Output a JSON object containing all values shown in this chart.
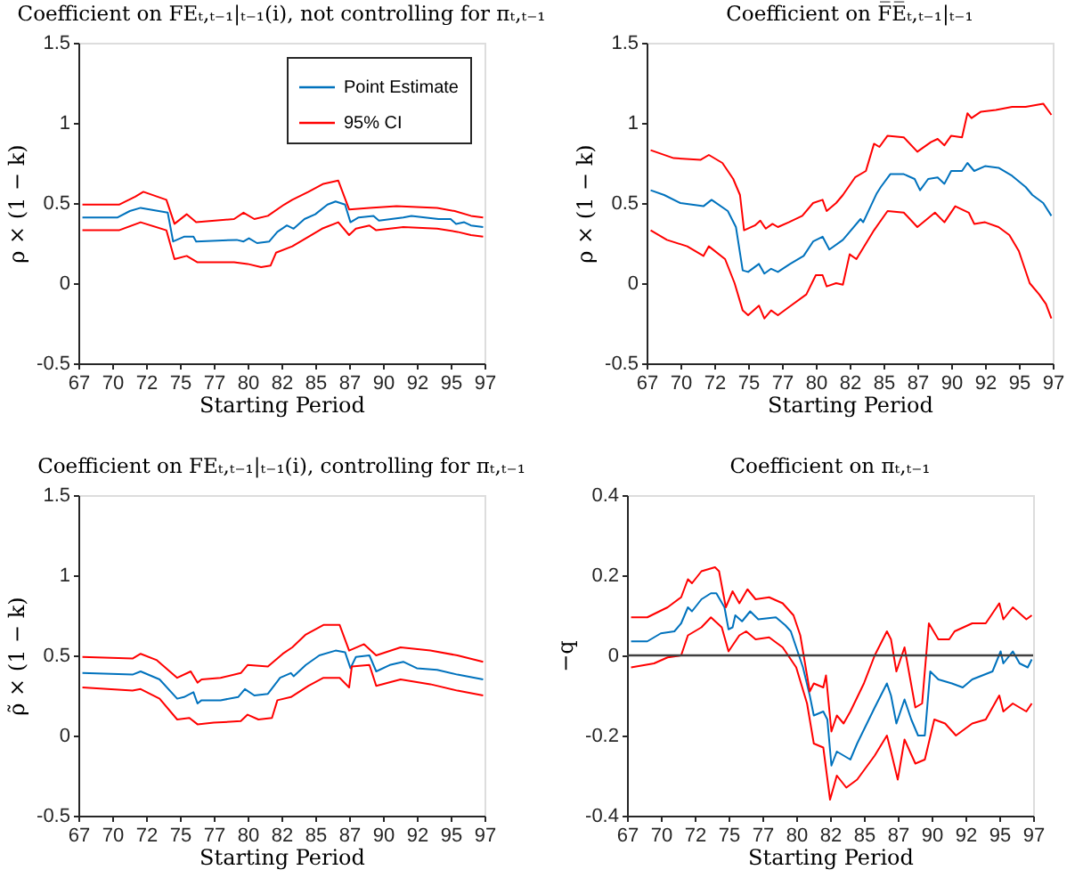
{
  "chart_data": [
    {
      "type": "line",
      "title": "Coefficient on FEₜ,ₜ₋₁|ₜ₋₁(i), not controlling for πₜ,ₜ₋₁",
      "xlabel": "Starting Period",
      "ylabel": "ρ × (1 − k)",
      "xlim": [
        67,
        97
      ],
      "xticks": [
        {
          "value": 67,
          "label": "67"
        },
        {
          "value": 69.5,
          "label": "70"
        },
        {
          "value": 72,
          "label": "72"
        },
        {
          "value": 74.5,
          "label": "75"
        },
        {
          "value": 77,
          "label": "77"
        },
        {
          "value": 79.5,
          "label": "80"
        },
        {
          "value": 82,
          "label": "82"
        },
        {
          "value": 84.5,
          "label": "85"
        },
        {
          "value": 87,
          "label": "87"
        },
        {
          "value": 89.5,
          "label": "90"
        },
        {
          "value": 92,
          "label": "92"
        },
        {
          "value": 94.5,
          "label": "95"
        },
        {
          "value": 97,
          "label": "97"
        }
      ],
      "ylim": [
        -0.5,
        1.5
      ],
      "yticks": [
        -0.5,
        0,
        0.5,
        1,
        1.5
      ],
      "grid": false,
      "legend": "top right",
      "series": [
        {
          "name": "Point Estimate",
          "color": "#0072bd",
          "x": [
            67.3,
            69.9,
            70.8,
            71.6,
            73.6,
            74.0,
            74.8,
            75.5,
            75.7,
            78.7,
            79.2,
            79.6,
            80.2,
            81.1,
            81.7,
            82.4,
            82.9,
            83.7,
            84.5,
            85.4,
            86.0,
            86.7,
            87.1,
            87.7,
            88.8,
            89.2,
            91.0,
            91.6,
            93.6,
            94.5,
            94.9,
            95.5,
            96.0,
            96.9
          ],
          "values": [
            0.41,
            0.41,
            0.45,
            0.47,
            0.44,
            0.26,
            0.29,
            0.29,
            0.26,
            0.27,
            0.26,
            0.28,
            0.25,
            0.26,
            0.32,
            0.36,
            0.34,
            0.4,
            0.43,
            0.49,
            0.51,
            0.49,
            0.38,
            0.41,
            0.42,
            0.39,
            0.41,
            0.42,
            0.4,
            0.4,
            0.37,
            0.38,
            0.36,
            0.35
          ]
        },
        {
          "name": "95% CI",
          "color": "#ff0000",
          "x": [
            67.3,
            70.0,
            71.2,
            71.8,
            73.5,
            74.1,
            75.0,
            75.7,
            78.5,
            79.2,
            80.0,
            81.0,
            82.2,
            82.8,
            84.0,
            85.1,
            86.2,
            87.0,
            88.5,
            90.5,
            93.5,
            94.8,
            96.0,
            96.9
          ],
          "values": [
            0.49,
            0.49,
            0.54,
            0.57,
            0.52,
            0.37,
            0.43,
            0.38,
            0.4,
            0.44,
            0.4,
            0.42,
            0.49,
            0.52,
            0.57,
            0.62,
            0.64,
            0.46,
            0.47,
            0.48,
            0.47,
            0.45,
            0.42,
            0.41
          ]
        },
        {
          "color": "#ff0000",
          "x": [
            67.3,
            70.0,
            71.6,
            73.5,
            74.1,
            75.0,
            75.8,
            78.5,
            79.5,
            80.5,
            81.2,
            81.6,
            82.8,
            84.0,
            85.0,
            86.2,
            87.0,
            87.5,
            88.5,
            89.0,
            91.0,
            93.5,
            95.0,
            96.0,
            96.9
          ],
          "values": [
            0.33,
            0.33,
            0.38,
            0.33,
            0.15,
            0.17,
            0.13,
            0.13,
            0.12,
            0.1,
            0.11,
            0.19,
            0.23,
            0.29,
            0.34,
            0.38,
            0.3,
            0.34,
            0.36,
            0.33,
            0.35,
            0.34,
            0.32,
            0.3,
            0.29
          ]
        }
      ]
    },
    {
      "type": "line",
      "title": "Coefficient on F̅E̅ₜ,ₜ₋₁|ₜ₋₁",
      "xlabel": "Starting Period",
      "ylabel": "ρ × (1 − k)",
      "xlim": [
        67,
        97
      ],
      "xticks": [
        {
          "value": 67,
          "label": "67"
        },
        {
          "value": 69.5,
          "label": "70"
        },
        {
          "value": 72,
          "label": "72"
        },
        {
          "value": 74.5,
          "label": "75"
        },
        {
          "value": 77,
          "label": "77"
        },
        {
          "value": 79.5,
          "label": "80"
        },
        {
          "value": 82,
          "label": "82"
        },
        {
          "value": 84.5,
          "label": "85"
        },
        {
          "value": 87,
          "label": "87"
        },
        {
          "value": 89.5,
          "label": "90"
        },
        {
          "value": 92,
          "label": "92"
        },
        {
          "value": 94.5,
          "label": "95"
        },
        {
          "value": 97,
          "label": "97"
        }
      ],
      "ylim": [
        -0.5,
        1.5
      ],
      "yticks": [
        -0.5,
        0,
        0.5,
        1,
        1.5
      ],
      "grid": false,
      "series": [
        {
          "color": "#0072bd",
          "x": [
            67.3,
            68.3,
            69.5,
            71.2,
            71.8,
            73.0,
            73.6,
            74.1,
            74.5,
            75.3,
            75.7,
            76.2,
            76.7,
            77.6,
            78.6,
            79.3,
            80.0,
            80.5,
            81.5,
            82.8,
            83.0,
            84.0,
            84.3,
            85.0,
            86.0,
            86.8,
            87.2,
            87.8,
            88.5,
            89.0,
            89.5,
            90.3,
            90.7,
            91.2,
            92.0,
            93.0,
            94.0,
            95.0,
            95.5,
            96.3,
            96.9
          ],
          "values": [
            0.58,
            0.55,
            0.5,
            0.48,
            0.52,
            0.45,
            0.35,
            0.08,
            0.07,
            0.12,
            0.06,
            0.09,
            0.07,
            0.12,
            0.17,
            0.26,
            0.29,
            0.21,
            0.27,
            0.4,
            0.38,
            0.56,
            0.6,
            0.68,
            0.68,
            0.65,
            0.58,
            0.65,
            0.66,
            0.62,
            0.7,
            0.7,
            0.75,
            0.7,
            0.73,
            0.72,
            0.67,
            0.6,
            0.55,
            0.5,
            0.42
          ]
        },
        {
          "color": "#ff0000",
          "x": [
            67.3,
            69.0,
            71.0,
            71.6,
            72.6,
            73.4,
            73.9,
            74.2,
            75.0,
            75.4,
            75.8,
            76.3,
            76.7,
            77.5,
            78.5,
            79.3,
            80.0,
            80.3,
            81.0,
            81.5,
            82.4,
            83.2,
            83.8,
            84.2,
            84.8,
            86.0,
            87.0,
            88.0,
            88.5,
            89.0,
            89.5,
            90.3,
            90.7,
            91.0,
            91.7,
            92.8,
            94.0,
            95.0,
            96.3,
            96.9
          ],
          "values": [
            0.83,
            0.78,
            0.77,
            0.8,
            0.75,
            0.65,
            0.55,
            0.33,
            0.36,
            0.39,
            0.34,
            0.37,
            0.35,
            0.38,
            0.42,
            0.5,
            0.52,
            0.45,
            0.5,
            0.55,
            0.66,
            0.7,
            0.87,
            0.85,
            0.92,
            0.91,
            0.82,
            0.88,
            0.9,
            0.86,
            0.92,
            0.91,
            1.06,
            1.03,
            1.07,
            1.08,
            1.1,
            1.1,
            1.12,
            1.05
          ]
        },
        {
          "color": "#ff0000",
          "x": [
            67.3,
            68.5,
            70.0,
            71.2,
            71.6,
            72.8,
            73.5,
            74.1,
            74.5,
            75.3,
            75.7,
            76.2,
            76.7,
            77.5,
            78.8,
            79.5,
            80.0,
            80.3,
            81.0,
            81.5,
            82.0,
            82.5,
            83.8,
            84.8,
            86.0,
            87.0,
            88.3,
            89.0,
            89.8,
            90.8,
            91.2,
            92.0,
            93.0,
            93.8,
            94.5,
            95.3,
            96.0,
            96.5,
            96.9
          ],
          "values": [
            0.33,
            0.27,
            0.23,
            0.17,
            0.23,
            0.15,
            0.0,
            -0.17,
            -0.2,
            -0.14,
            -0.22,
            -0.17,
            -0.2,
            -0.15,
            -0.07,
            0.05,
            0.05,
            -0.02,
            0.0,
            -0.01,
            0.18,
            0.15,
            0.33,
            0.45,
            0.44,
            0.35,
            0.44,
            0.38,
            0.48,
            0.44,
            0.37,
            0.38,
            0.35,
            0.3,
            0.2,
            0.0,
            -0.07,
            -0.13,
            -0.22
          ]
        }
      ]
    },
    {
      "type": "line",
      "title": "Coefficient on FEₜ,ₜ₋₁|ₜ₋₁(i), controlling for πₜ,ₜ₋₁",
      "xlabel": "Starting Period",
      "ylabel": "ρ̃ × (1 − k)",
      "xlim": [
        67,
        97
      ],
      "xticks": [
        {
          "value": 67,
          "label": "67"
        },
        {
          "value": 69.5,
          "label": "70"
        },
        {
          "value": 72,
          "label": "72"
        },
        {
          "value": 74.5,
          "label": "75"
        },
        {
          "value": 77,
          "label": "77"
        },
        {
          "value": 79.5,
          "label": "80"
        },
        {
          "value": 82,
          "label": "82"
        },
        {
          "value": 84.5,
          "label": "85"
        },
        {
          "value": 87,
          "label": "87"
        },
        {
          "value": 89.5,
          "label": "90"
        },
        {
          "value": 92,
          "label": "92"
        },
        {
          "value": 94.5,
          "label": "95"
        },
        {
          "value": 97,
          "label": "97"
        }
      ],
      "ylim": [
        -0.5,
        1.5
      ],
      "yticks": [
        -0.5,
        0,
        0.5,
        1,
        1.5
      ],
      "grid": false,
      "series": [
        {
          "color": "#0072bd",
          "x": [
            67.3,
            71.0,
            71.6,
            73.0,
            74.3,
            74.8,
            75.5,
            75.8,
            76.1,
            77.5,
            78.8,
            79.3,
            80.0,
            81.0,
            81.9,
            82.7,
            82.9,
            83.8,
            84.8,
            86.0,
            86.7,
            87.1,
            87.5,
            88.5,
            89.0,
            90.0,
            91.0,
            92.0,
            93.5,
            95.0,
            96.9
          ],
          "values": [
            0.39,
            0.38,
            0.4,
            0.35,
            0.23,
            0.24,
            0.27,
            0.2,
            0.22,
            0.22,
            0.24,
            0.29,
            0.25,
            0.26,
            0.36,
            0.39,
            0.37,
            0.44,
            0.5,
            0.53,
            0.52,
            0.42,
            0.49,
            0.5,
            0.4,
            0.44,
            0.46,
            0.42,
            0.41,
            0.38,
            0.35
          ]
        },
        {
          "color": "#ff0000",
          "x": [
            67.3,
            71.0,
            71.6,
            72.8,
            74.3,
            75.3,
            75.8,
            76.1,
            77.5,
            79.0,
            79.5,
            81.0,
            82.1,
            82.8,
            83.8,
            85.1,
            86.3,
            87.0,
            88.1,
            89.0,
            90.8,
            93.0,
            95.0,
            96.9
          ],
          "values": [
            0.49,
            0.48,
            0.51,
            0.47,
            0.36,
            0.4,
            0.33,
            0.35,
            0.36,
            0.39,
            0.44,
            0.43,
            0.51,
            0.55,
            0.63,
            0.69,
            0.69,
            0.53,
            0.57,
            0.5,
            0.55,
            0.53,
            0.5,
            0.46
          ]
        },
        {
          "color": "#ff0000",
          "x": [
            67.3,
            71.0,
            71.6,
            73.0,
            74.3,
            75.2,
            75.8,
            77.0,
            79.0,
            79.5,
            80.3,
            81.3,
            81.7,
            82.7,
            84.0,
            85.1,
            86.3,
            87.0,
            87.2,
            88.5,
            89.0,
            90.8,
            93.0,
            95.0,
            96.9
          ],
          "values": [
            0.3,
            0.28,
            0.29,
            0.23,
            0.1,
            0.11,
            0.07,
            0.08,
            0.09,
            0.13,
            0.1,
            0.11,
            0.22,
            0.24,
            0.31,
            0.36,
            0.36,
            0.3,
            0.43,
            0.44,
            0.31,
            0.35,
            0.32,
            0.28,
            0.25
          ]
        }
      ]
    },
    {
      "type": "line",
      "title": "Coefficient on πₜ,ₜ₋₁",
      "xlabel": "Starting Period",
      "ylabel": "−q",
      "xlim": [
        67,
        97
      ],
      "xticks": [
        {
          "value": 67,
          "label": "67"
        },
        {
          "value": 69.5,
          "label": "70"
        },
        {
          "value": 72,
          "label": "72"
        },
        {
          "value": 74.5,
          "label": "75"
        },
        {
          "value": 77,
          "label": "77"
        },
        {
          "value": 79.5,
          "label": "80"
        },
        {
          "value": 82,
          "label": "82"
        },
        {
          "value": 84.5,
          "label": "85"
        },
        {
          "value": 87,
          "label": "87"
        },
        {
          "value": 89.5,
          "label": "90"
        },
        {
          "value": 92,
          "label": "92"
        },
        {
          "value": 94.5,
          "label": "95"
        },
        {
          "value": 97,
          "label": "97"
        }
      ],
      "ylim": [
        -0.4,
        0.4
      ],
      "yticks": [
        -0.4,
        -0.2,
        0,
        0.2,
        0.4
      ],
      "grid": false,
      "ref_lines": [
        {
          "axis": "y",
          "value": 0,
          "color": "#404040"
        }
      ],
      "series": [
        {
          "color": "#0072bd",
          "x": [
            67.3,
            68.5,
            69.5,
            70.5,
            71.0,
            71.5,
            71.8,
            72.5,
            73.2,
            73.6,
            74.2,
            74.5,
            74.8,
            75.0,
            75.5,
            76.1,
            76.7,
            78.0,
            78.7,
            79.1,
            79.5,
            80.0,
            80.5,
            80.8,
            81.5,
            81.8,
            82.1,
            82.5,
            83.0,
            83.5,
            84.0,
            85.3,
            86.2,
            86.5,
            86.9,
            87.5,
            88.0,
            88.5,
            89.0,
            89.4,
            90.0,
            91.0,
            91.8,
            92.5,
            94.0,
            94.6,
            94.8,
            95.5,
            96.0,
            96.6,
            96.9
          ],
          "values": [
            0.035,
            0.035,
            0.055,
            0.06,
            0.08,
            0.12,
            0.11,
            0.14,
            0.155,
            0.155,
            0.12,
            0.065,
            0.07,
            0.1,
            0.085,
            0.11,
            0.09,
            0.095,
            0.075,
            0.06,
            0.02,
            -0.03,
            -0.1,
            -0.15,
            -0.14,
            -0.16,
            -0.275,
            -0.24,
            -0.25,
            -0.26,
            -0.22,
            -0.13,
            -0.07,
            -0.1,
            -0.17,
            -0.11,
            -0.16,
            -0.2,
            -0.2,
            -0.04,
            -0.06,
            -0.07,
            -0.08,
            -0.06,
            -0.04,
            0.01,
            -0.02,
            0.01,
            -0.02,
            -0.03,
            -0.01
          ]
        },
        {
          "color": "#ff0000",
          "x": [
            67.3,
            68.5,
            70.0,
            71.0,
            71.5,
            71.8,
            72.5,
            73.5,
            73.8,
            74.3,
            74.8,
            75.3,
            75.9,
            76.5,
            77.5,
            78.5,
            79.3,
            79.8,
            80.5,
            80.8,
            81.5,
            81.7,
            82.1,
            82.5,
            83.0,
            83.5,
            84.5,
            85.3,
            86.2,
            86.5,
            86.9,
            87.5,
            88.3,
            88.8,
            89.3,
            90.0,
            90.8,
            91.2,
            92.5,
            93.5,
            94.5,
            94.8,
            95.5,
            96.5,
            96.9
          ],
          "values": [
            0.095,
            0.095,
            0.12,
            0.145,
            0.19,
            0.18,
            0.21,
            0.22,
            0.21,
            0.12,
            0.16,
            0.13,
            0.165,
            0.14,
            0.145,
            0.13,
            0.1,
            0.05,
            -0.09,
            -0.07,
            -0.08,
            -0.05,
            -0.19,
            -0.15,
            -0.17,
            -0.14,
            -0.07,
            0.0,
            0.06,
            0.04,
            -0.04,
            0.02,
            -0.13,
            -0.12,
            0.08,
            0.04,
            0.04,
            0.06,
            0.08,
            0.08,
            0.13,
            0.09,
            0.12,
            0.09,
            0.1
          ]
        },
        {
          "color": "#ff0000",
          "x": [
            67.3,
            69.0,
            70.0,
            71.0,
            71.5,
            72.5,
            73.2,
            74.0,
            74.5,
            75.3,
            75.8,
            76.5,
            77.5,
            78.5,
            79.5,
            80.3,
            80.8,
            81.5,
            82.0,
            82.5,
            83.2,
            84.0,
            85.3,
            86.2,
            86.5,
            87.0,
            87.5,
            88.3,
            89.0,
            89.7,
            90.5,
            91.3,
            92.5,
            93.5,
            94.5,
            94.8,
            95.5,
            96.5,
            96.9
          ],
          "values": [
            -0.03,
            -0.02,
            -0.005,
            0.0,
            0.05,
            0.07,
            0.095,
            0.07,
            0.01,
            0.05,
            0.06,
            0.04,
            0.045,
            0.02,
            -0.03,
            -0.12,
            -0.22,
            -0.23,
            -0.36,
            -0.3,
            -0.33,
            -0.31,
            -0.25,
            -0.2,
            -0.24,
            -0.31,
            -0.21,
            -0.27,
            -0.26,
            -0.16,
            -0.17,
            -0.2,
            -0.17,
            -0.16,
            -0.1,
            -0.14,
            -0.12,
            -0.14,
            -0.12
          ]
        }
      ]
    }
  ]
}
